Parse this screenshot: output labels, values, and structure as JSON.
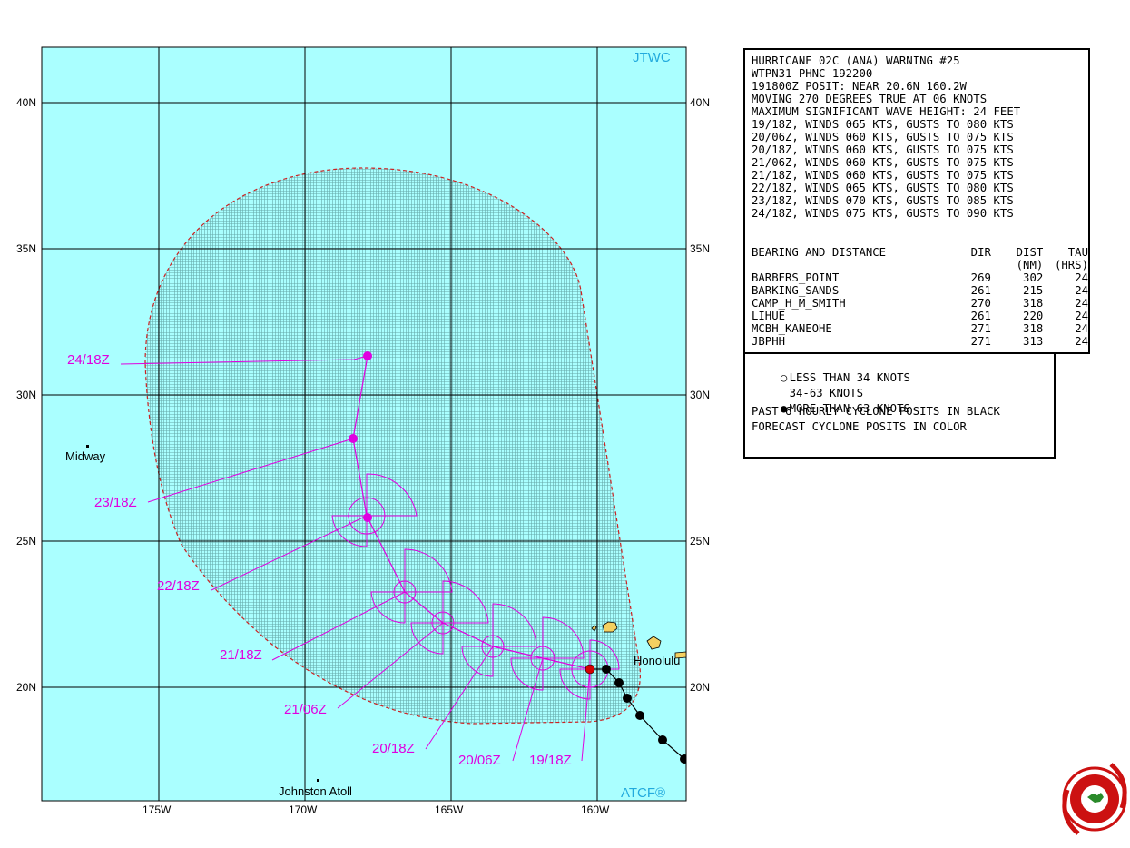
{
  "map": {
    "org_label": "JTWC",
    "source_label": "ATCF®",
    "lat_labels": [
      "40N",
      "35N",
      "30N",
      "25N",
      "20N"
    ],
    "lon_labels": [
      "175W",
      "170W",
      "165W",
      "160W"
    ],
    "places": [
      {
        "name": "Midway"
      },
      {
        "name": "Honolulu"
      },
      {
        "name": "Johnston Atoll"
      }
    ],
    "forecast_labels": [
      "24/18Z",
      "23/18Z",
      "22/18Z",
      "21/18Z",
      "21/06Z",
      "20/18Z",
      "20/06Z",
      "19/18Z"
    ],
    "track_colors": {
      "forecast": "#e000e0",
      "past": "#000000",
      "ocean": "#aaffff",
      "danger_area": "#66bbbb",
      "danger_edge": "#cc2222",
      "current": "#d40000"
    }
  },
  "warning": {
    "lines": [
      "HURRICANE 02C (ANA) WARNING #25",
      "WTPN31 PHNC 192200",
      "191800Z POSIT: NEAR 20.6N 160.2W",
      "MOVING 270 DEGREES TRUE AT 06 KNOTS",
      "MAXIMUM SIGNIFICANT WAVE HEIGHT: 24 FEET",
      "19/18Z, WINDS 065 KTS, GUSTS TO 080 KTS",
      "20/06Z, WINDS 060 KTS, GUSTS TO 075 KTS",
      "20/18Z, WINDS 060 KTS, GUSTS TO 075 KTS",
      "21/06Z, WINDS 060 KTS, GUSTS TO 075 KTS",
      "21/18Z, WINDS 060 KTS, GUSTS TO 075 KTS",
      "22/18Z, WINDS 065 KTS, GUSTS TO 080 KTS",
      "23/18Z, WINDS 070 KTS, GUSTS TO 085 KTS",
      "24/18Z, WINDS 075 KTS, GUSTS TO 090 KTS"
    ],
    "bearing_header": [
      "BEARING AND DISTANCE",
      "DIR",
      "DIST",
      "TAU"
    ],
    "bearing_units": [
      "",
      "",
      "(NM)",
      "(HRS)"
    ],
    "bearing_rows": [
      [
        "BARBERS_POINT",
        "269",
        "302",
        "24"
      ],
      [
        "BARKING_SANDS",
        "261",
        "215",
        "24"
      ],
      [
        "CAMP_H_M_SMITH",
        "270",
        "318",
        "24"
      ],
      [
        "LIHUE",
        "261",
        "220",
        "24"
      ],
      [
        "MCBH_KANEOHE",
        "271",
        "318",
        "24"
      ],
      [
        "JBPHH",
        "271",
        "313",
        "24"
      ]
    ]
  },
  "legend": {
    "lt34": "LESS THAN 34 KNOTS",
    "k34_63": "34-63 KNOTS",
    "gt63": "MORE THAN 63 KNOTS",
    "note1": "PAST 6 HOURLY CYCLONE POSITS IN BLACK",
    "note2": "FORECAST CYCLONE POSITS IN COLOR"
  }
}
